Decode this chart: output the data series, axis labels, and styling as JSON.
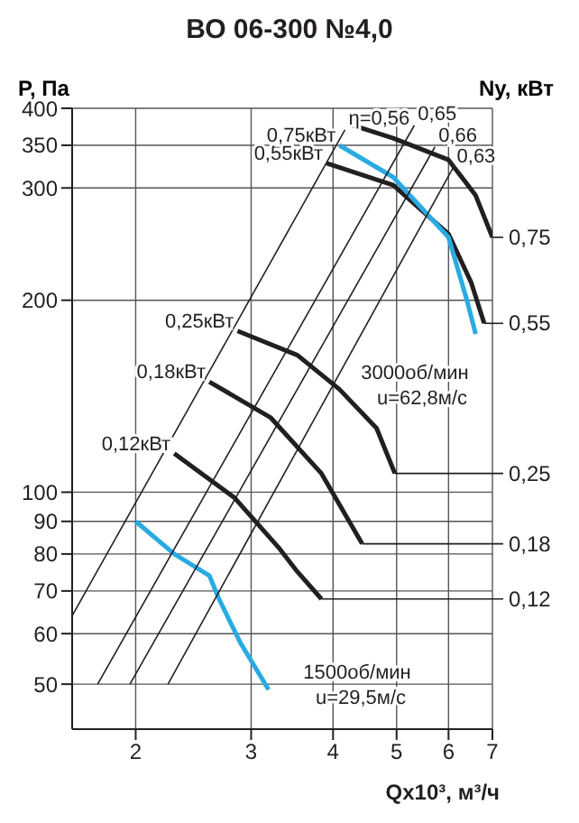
{
  "chart_data": {
    "type": "line",
    "title": "ВО 06-300 №4,0",
    "xlabel": "Qx10³, м³/ч",
    "ylabel": "P, Па",
    "y2label": "Ny, кВт",
    "log": "xy",
    "xlim": [
      1.6,
      7
    ],
    "xticks": [
      2,
      3,
      4,
      5,
      6,
      7
    ],
    "ylim": [
      42.5,
      400
    ],
    "yticks": [
      50,
      60,
      70,
      80,
      90,
      100,
      200,
      300,
      350,
      400
    ],
    "grid": true,
    "legend": false,
    "marker": "none",
    "series": [
      {
        "color": "#231f20",
        "x": [
          4.29,
          4.94,
          6.0,
          6.6,
          7
        ],
        "values": [
          376,
          359,
          332,
          292,
          251
        ]
      },
      {
        "name": "0,55кВт",
        "color": "#231f20",
        "x": [
          3.91,
          4.94,
          6.0,
          6.5,
          6.8
        ],
        "values": [
          328,
          303,
          254,
          213,
          184
        ]
      },
      {
        "name": "0,75кВт",
        "color": "#29abe2",
        "x": [
          4.09,
          4.94,
          6.0,
          6.4,
          6.6
        ],
        "values": [
          350,
          312,
          251,
          200,
          177
        ]
      },
      {
        "name": "0,25кВт",
        "color": "#231f20",
        "x": [
          2.86,
          3.53,
          4.09,
          4.66,
          4.97
        ],
        "values": [
          179,
          164,
          145,
          126,
          107
        ]
      },
      {
        "name": "0,18кВт",
        "color": "#231f20",
        "x": [
          2.59,
          3.21,
          3.84,
          4.43
        ],
        "values": [
          149,
          131,
          107,
          83
        ]
      },
      {
        "name": "0,12кВт",
        "color": "#231f20",
        "x": [
          2.29,
          2.83,
          3.3,
          3.53,
          3.84
        ],
        "values": [
          115,
          98,
          82,
          75,
          68
        ]
      },
      {
        "color": "#29abe2",
        "x": [
          2.0,
          2.29,
          2.59,
          2.68,
          2.89,
          3.19
        ],
        "values": [
          90,
          80,
          74,
          68,
          58,
          49
        ]
      },
      {
        "name": "η=0,56",
        "color": "#231f20",
        "x": [
          4.17,
          1.6
        ],
        "values": [
          370,
          64
        ]
      },
      {
        "name": "0,65",
        "color": "#231f20",
        "x": [
          5.32,
          1.75
        ],
        "values": [
          376,
          50
        ]
      },
      {
        "name": "0,66",
        "color": "#231f20",
        "x": [
          5.72,
          1.96
        ],
        "values": [
          348,
          50
        ]
      },
      {
        "name": "0,63",
        "color": "#231f20",
        "x": [
          6.1,
          2.24
        ],
        "values": [
          323,
          50
        ]
      }
    ],
    "annotations": [
      "3000об/мин",
      "u=62,8м/с",
      "1500об/мин",
      "u=29,5м/с",
      {
        "text": "0,75",
        "x": 7,
        "y": 251
      },
      {
        "text": "0,55",
        "x": 6.8,
        "y": 184
      },
      {
        "text": "0,25",
        "x": 4.97,
        "y": 107
      },
      {
        "text": "0,18",
        "x": 4.43,
        "y": 83
      },
      {
        "text": "0,12",
        "x": 3.84,
        "y": 68
      }
    ]
  }
}
